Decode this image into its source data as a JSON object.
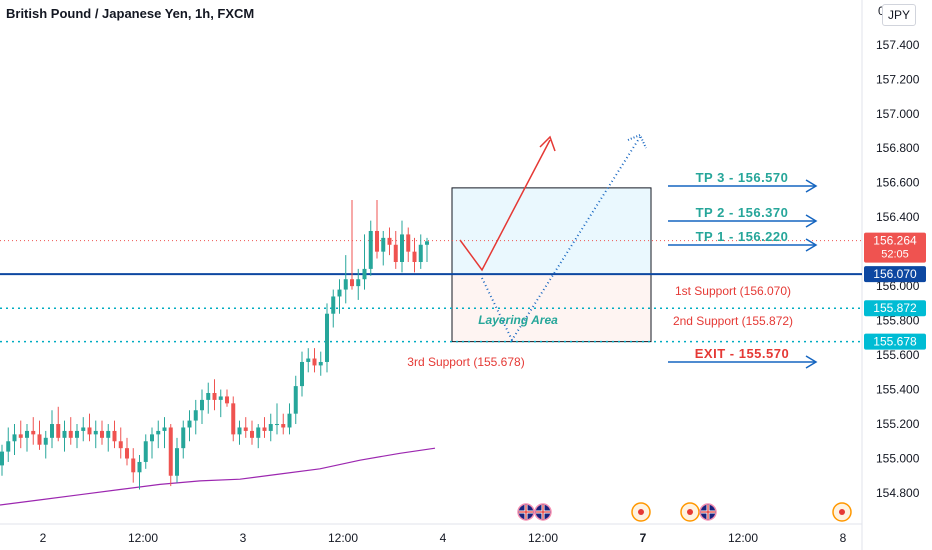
{
  "header": {
    "title": "British Pound / Japanese Yen, 1h, FXCM",
    "currency": "JPY",
    "top_price_partial": "0"
  },
  "chart_data": {
    "type": "candlestick",
    "title": "British Pound / Japanese Yen, 1h, FXCM",
    "ylim": [
      154.62,
      157.66
    ],
    "y_ticks": [
      "157.400",
      "157.200",
      "157.000",
      "156.800",
      "156.600",
      "156.400",
      "156.200",
      "156.000",
      "155.800",
      "155.600",
      "155.400",
      "155.200",
      "155.000",
      "154.800"
    ],
    "y_tick_values": [
      157.4,
      157.2,
      157.0,
      156.8,
      156.6,
      156.4,
      156.2,
      156.0,
      155.8,
      155.6,
      155.4,
      155.2,
      155.0,
      154.8
    ],
    "x_ticks": [
      "2",
      "12:00",
      "3",
      "12:00",
      "4",
      "12:00",
      "7",
      "12:00",
      "8"
    ],
    "x_tick_bold": [
      "7"
    ],
    "candles": [
      {
        "o": 154.96,
        "h": 155.08,
        "l": 154.9,
        "c": 155.04
      },
      {
        "o": 155.04,
        "h": 155.18,
        "l": 154.98,
        "c": 155.1
      },
      {
        "o": 155.1,
        "h": 155.2,
        "l": 155.02,
        "c": 155.14
      },
      {
        "o": 155.14,
        "h": 155.22,
        "l": 155.06,
        "c": 155.12
      },
      {
        "o": 155.12,
        "h": 155.2,
        "l": 155.04,
        "c": 155.16
      },
      {
        "o": 155.16,
        "h": 155.24,
        "l": 155.08,
        "c": 155.14
      },
      {
        "o": 155.14,
        "h": 155.22,
        "l": 155.05,
        "c": 155.08
      },
      {
        "o": 155.08,
        "h": 155.16,
        "l": 155.0,
        "c": 155.12
      },
      {
        "o": 155.12,
        "h": 155.28,
        "l": 155.06,
        "c": 155.2
      },
      {
        "o": 155.2,
        "h": 155.3,
        "l": 155.1,
        "c": 155.12
      },
      {
        "o": 155.12,
        "h": 155.22,
        "l": 155.04,
        "c": 155.16
      },
      {
        "o": 155.16,
        "h": 155.24,
        "l": 155.08,
        "c": 155.12
      },
      {
        "o": 155.12,
        "h": 155.2,
        "l": 155.06,
        "c": 155.16
      },
      {
        "o": 155.16,
        "h": 155.24,
        "l": 155.1,
        "c": 155.18
      },
      {
        "o": 155.18,
        "h": 155.26,
        "l": 155.1,
        "c": 155.14
      },
      {
        "o": 155.14,
        "h": 155.22,
        "l": 155.06,
        "c": 155.16
      },
      {
        "o": 155.16,
        "h": 155.22,
        "l": 155.08,
        "c": 155.12
      },
      {
        "o": 155.12,
        "h": 155.2,
        "l": 155.04,
        "c": 155.16
      },
      {
        "o": 155.16,
        "h": 155.22,
        "l": 155.06,
        "c": 155.1
      },
      {
        "o": 155.1,
        "h": 155.18,
        "l": 155.0,
        "c": 155.06
      },
      {
        "o": 155.06,
        "h": 155.12,
        "l": 154.96,
        "c": 155.0
      },
      {
        "o": 155.0,
        "h": 155.06,
        "l": 154.86,
        "c": 154.92
      },
      {
        "o": 154.92,
        "h": 155.02,
        "l": 154.82,
        "c": 154.98
      },
      {
        "o": 154.98,
        "h": 155.14,
        "l": 154.94,
        "c": 155.1
      },
      {
        "o": 155.1,
        "h": 155.18,
        "l": 155.0,
        "c": 155.14
      },
      {
        "o": 155.14,
        "h": 155.22,
        "l": 155.06,
        "c": 155.16
      },
      {
        "o": 155.16,
        "h": 155.24,
        "l": 155.06,
        "c": 155.18
      },
      {
        "o": 155.18,
        "h": 155.2,
        "l": 154.84,
        "c": 154.9
      },
      {
        "o": 154.9,
        "h": 155.12,
        "l": 154.86,
        "c": 155.06
      },
      {
        "o": 155.06,
        "h": 155.22,
        "l": 155.0,
        "c": 155.18
      },
      {
        "o": 155.18,
        "h": 155.28,
        "l": 155.1,
        "c": 155.22
      },
      {
        "o": 155.22,
        "h": 155.34,
        "l": 155.14,
        "c": 155.28
      },
      {
        "o": 155.28,
        "h": 155.4,
        "l": 155.2,
        "c": 155.34
      },
      {
        "o": 155.34,
        "h": 155.44,
        "l": 155.26,
        "c": 155.38
      },
      {
        "o": 155.38,
        "h": 155.46,
        "l": 155.28,
        "c": 155.34
      },
      {
        "o": 155.34,
        "h": 155.4,
        "l": 155.24,
        "c": 155.36
      },
      {
        "o": 155.36,
        "h": 155.4,
        "l": 155.3,
        "c": 155.32
      },
      {
        "o": 155.32,
        "h": 155.36,
        "l": 155.1,
        "c": 155.14
      },
      {
        "o": 155.14,
        "h": 155.22,
        "l": 155.08,
        "c": 155.18
      },
      {
        "o": 155.18,
        "h": 155.24,
        "l": 155.12,
        "c": 155.16
      },
      {
        "o": 155.16,
        "h": 155.22,
        "l": 155.08,
        "c": 155.12
      },
      {
        "o": 155.12,
        "h": 155.2,
        "l": 155.06,
        "c": 155.18
      },
      {
        "o": 155.18,
        "h": 155.24,
        "l": 155.12,
        "c": 155.16
      },
      {
        "o": 155.16,
        "h": 155.26,
        "l": 155.1,
        "c": 155.2
      },
      {
        "o": 155.2,
        "h": 155.32,
        "l": 155.14,
        "c": 155.2
      },
      {
        "o": 155.2,
        "h": 155.26,
        "l": 155.14,
        "c": 155.18
      },
      {
        "o": 155.18,
        "h": 155.32,
        "l": 155.14,
        "c": 155.26
      },
      {
        "o": 155.26,
        "h": 155.48,
        "l": 155.2,
        "c": 155.42
      },
      {
        "o": 155.42,
        "h": 155.62,
        "l": 155.36,
        "c": 155.56
      },
      {
        "o": 155.56,
        "h": 155.64,
        "l": 155.5,
        "c": 155.58
      },
      {
        "o": 155.58,
        "h": 155.64,
        "l": 155.5,
        "c": 155.54
      },
      {
        "o": 155.54,
        "h": 155.62,
        "l": 155.48,
        "c": 155.56
      },
      {
        "o": 155.56,
        "h": 155.9,
        "l": 155.5,
        "c": 155.84
      },
      {
        "o": 155.84,
        "h": 155.98,
        "l": 155.76,
        "c": 155.94
      },
      {
        "o": 155.94,
        "h": 156.04,
        "l": 155.84,
        "c": 155.98
      },
      {
        "o": 155.98,
        "h": 156.18,
        "l": 155.9,
        "c": 156.04
      },
      {
        "o": 156.04,
        "h": 156.5,
        "l": 155.98,
        "c": 156.0
      },
      {
        "o": 156.0,
        "h": 156.1,
        "l": 155.92,
        "c": 156.04
      },
      {
        "o": 156.04,
        "h": 156.3,
        "l": 155.98,
        "c": 156.1
      },
      {
        "o": 156.1,
        "h": 156.38,
        "l": 156.06,
        "c": 156.32
      },
      {
        "o": 156.32,
        "h": 156.5,
        "l": 156.16,
        "c": 156.2
      },
      {
        "o": 156.2,
        "h": 156.32,
        "l": 156.12,
        "c": 156.28
      },
      {
        "o": 156.28,
        "h": 156.34,
        "l": 156.18,
        "c": 156.24
      },
      {
        "o": 156.24,
        "h": 156.32,
        "l": 156.1,
        "c": 156.14
      },
      {
        "o": 156.14,
        "h": 156.38,
        "l": 156.08,
        "c": 156.3
      },
      {
        "o": 156.3,
        "h": 156.34,
        "l": 156.14,
        "c": 156.2
      },
      {
        "o": 156.2,
        "h": 156.28,
        "l": 156.08,
        "c": 156.14
      },
      {
        "o": 156.14,
        "h": 156.3,
        "l": 156.1,
        "c": 156.24
      },
      {
        "o": 156.24,
        "h": 156.28,
        "l": 156.14,
        "c": 156.26
      }
    ],
    "moving_average": [
      [
        0,
        154.73
      ],
      [
        40,
        154.76
      ],
      [
        80,
        154.79
      ],
      [
        120,
        154.82
      ],
      [
        160,
        154.85
      ],
      [
        200,
        154.87
      ],
      [
        240,
        154.88
      ],
      [
        280,
        154.91
      ],
      [
        320,
        154.94
      ],
      [
        360,
        154.99
      ],
      [
        400,
        155.03
      ],
      [
        435,
        155.06
      ]
    ],
    "annotations": {
      "tp3": {
        "label": "TP 3 - 156.570",
        "price": 156.57
      },
      "tp2": {
        "label": "TP 2 - 156.370",
        "price": 156.37
      },
      "tp1": {
        "label": "TP 1 - 156.220",
        "price": 156.22
      },
      "support1": {
        "label": "1st Support (156.070)",
        "price": 156.07
      },
      "support2": {
        "label": "2nd Support (155.872)",
        "price": 155.872
      },
      "support3": {
        "label": "3rd Support (155.678)",
        "price": 155.678
      },
      "exit": {
        "label": "EXIT - 155.570",
        "price": 155.57
      },
      "zone_label": "Layering Area"
    },
    "price_labels": {
      "current": {
        "value": "156.264",
        "countdown": "52:05",
        "price": 156.264,
        "color": "#ef5350"
      },
      "level1": {
        "value": "156.070",
        "price": 156.07,
        "color": "#0d47a1"
      },
      "level2": {
        "value": "155.872",
        "price": 155.872,
        "color": "#00bcd4"
      },
      "level3": {
        "value": "155.678",
        "price": 155.678,
        "color": "#00bcd4"
      }
    },
    "colors": {
      "up": "#26a69a",
      "down": "#ef5350",
      "ma": "#9c27b0",
      "tp": "#26a69a",
      "support": "#ef5350",
      "arrow_blue": "#1565c0"
    }
  },
  "events": [
    "uk-flag",
    "uk-flag",
    "event-dot",
    "event-dot",
    "uk-flag",
    "event-dot"
  ]
}
